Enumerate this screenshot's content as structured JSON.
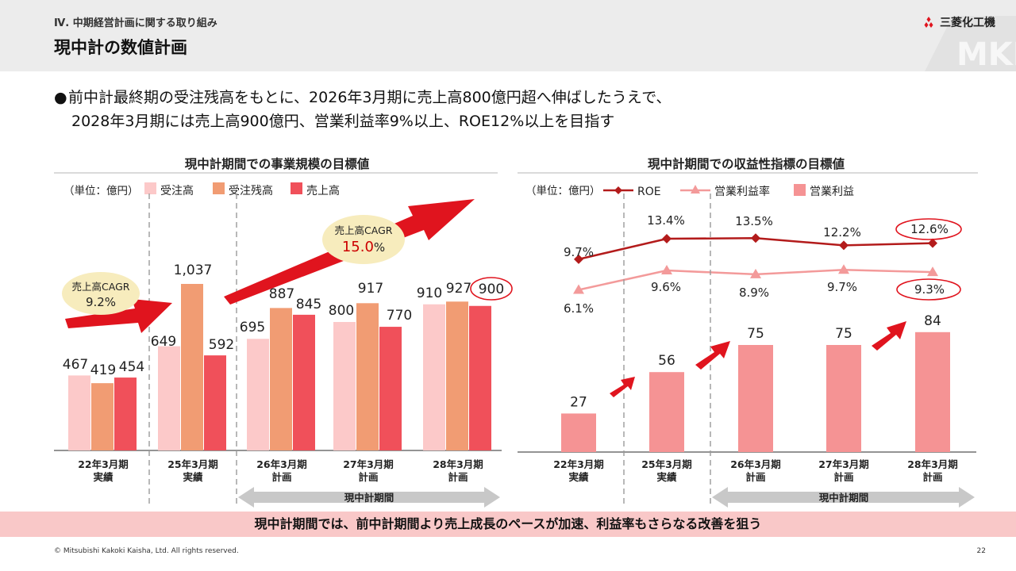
{
  "header": {
    "section": "Ⅳ. 中期経営計画に関する取り組み",
    "title": "現中計の数値計画",
    "brand": "三菱化工機",
    "watermark": "MKK"
  },
  "lead": {
    "line1": "前中計最終期の受注残高をもとに、2026年3月期に売上高800億円超へ伸ばしたうえで、",
    "line2": "2028年3月期には売上高900億円、営業利益率9%以上、ROE12%以上を目指す"
  },
  "chart_data": [
    {
      "type": "bar",
      "title": "現中計期間での事業規模の目標値",
      "unit": "（単位：億円）",
      "categories": [
        "22年3月期\n実績",
        "25年3月期\n実績",
        "26年3月期\n計画",
        "27年3月期\n計画",
        "28年3月期\n計画"
      ],
      "series": [
        {
          "name": "受注高",
          "values": [
            467,
            649,
            695,
            800,
            910
          ],
          "color": "#fcc9c9"
        },
        {
          "name": "受注残高",
          "values": [
            419,
            1037,
            887,
            917,
            927
          ],
          "color": "#f19c73"
        },
        {
          "name": "売上高",
          "values": [
            454,
            592,
            845,
            770,
            900
          ],
          "color": "#f0505a"
        }
      ],
      "data_labels": [
        [
          "467",
          "419",
          "454"
        ],
        [
          "649",
          "1,037",
          "592"
        ],
        [
          "695",
          "887",
          "845"
        ],
        [
          "800",
          "917",
          "770"
        ],
        [
          "910",
          "927",
          "900"
        ]
      ],
      "ylim": [
        0,
        1100
      ],
      "annotations": {
        "cagr1_label": "売上高CAGR",
        "cagr1_value": "9.2%",
        "cagr2_label": "売上高CAGR",
        "cagr2_value": "15.0",
        "cagr2_unit": "%",
        "period_label": "現中計期間"
      }
    },
    {
      "type": "bar",
      "title": "現中計期間での収益性指標の目標値",
      "unit": "（単位：億円）",
      "categories": [
        "22年3月期\n実績",
        "25年3月期\n実績",
        "26年3月期\n計画",
        "27年3月期\n計画",
        "28年3月期\n計画"
      ],
      "series": [
        {
          "name": "ROE",
          "type": "line",
          "values": [
            9.7,
            13.4,
            13.5,
            12.2,
            12.6
          ],
          "labels": [
            "9.7%",
            "13.4%",
            "13.5%",
            "12.2%",
            "12.6%"
          ],
          "color": "#b31b1b"
        },
        {
          "name": "営業利益率",
          "type": "line",
          "values": [
            6.1,
            9.6,
            8.9,
            9.7,
            9.3
          ],
          "labels": [
            "6.1%",
            "9.6%",
            "8.9%",
            "9.7%",
            "9.3%"
          ],
          "color": "#f39a9a"
        },
        {
          "name": "営業利益",
          "type": "bar",
          "values": [
            27,
            56,
            75,
            75,
            84
          ],
          "labels": [
            "27",
            "56",
            "75",
            "75",
            "84"
          ],
          "color": "#f59394"
        }
      ],
      "bar_ylim": [
        0,
        100
      ],
      "annotations": {
        "period_label": "現中計期間"
      }
    }
  ],
  "banner": "現中計期間では、前中計期間より売上成長のペースが加速、利益率もさらなる改善を狙う",
  "footer": {
    "copyright": "© Mitsubishi Kakoki Kaisha, Ltd. All rights reserved.",
    "page": "22"
  },
  "colors": {
    "header_bg": "#ececec",
    "banner_bg": "#f9c8c8",
    "arrow_red": "#e0141e",
    "gray": "#c8c8c8"
  }
}
